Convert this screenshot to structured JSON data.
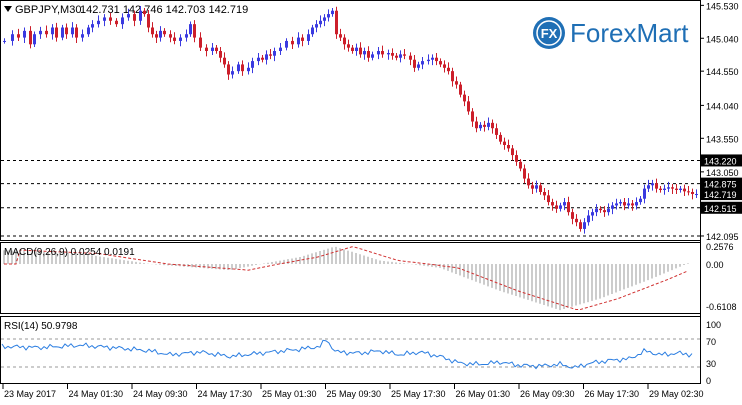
{
  "header": {
    "symbol": "GBPJPY,M30",
    "ohlc": "142.731 142.746 142.703 142.719",
    "menu_icon": "dropdown-triangle-icon"
  },
  "brand": {
    "name": "ForexMart",
    "logo_icon": "fx-logo-icon",
    "logo_letters": "FX",
    "color": "#1f6fb5"
  },
  "price_axis": {
    "labels": [
      "145.530",
      "145.040",
      "144.550",
      "144.040",
      "143.550",
      "143.050",
      "142.095"
    ],
    "markers": [
      {
        "value": "143.220",
        "style": "dark"
      },
      {
        "value": "142.875",
        "style": "dark"
      },
      {
        "value": "142.719",
        "style": "dark"
      },
      {
        "value": "142.515",
        "style": "dark"
      }
    ]
  },
  "macd": {
    "label": "MACD(9,26,9) 0.0254 0.0191",
    "axis": [
      "0.2576",
      "0.00",
      "-0.6108"
    ]
  },
  "rsi": {
    "label": "RSI(14) 50.9798",
    "axis": [
      "100",
      "70",
      "30",
      "0"
    ]
  },
  "time_axis": [
    "23 May 2017",
    "24 May 01:30",
    "24 May 09:30",
    "24 May 17:30",
    "25 May 01:30",
    "25 May 09:30",
    "25 May 17:30",
    "26 May 01:30",
    "26 May 09:30",
    "26 May 17:30",
    "29 May 02:30"
  ],
  "colors": {
    "bull": "#3a3ae0",
    "bear": "#cc1f2b",
    "macd_signal": "#d03030",
    "rsi_line": "#2a7de1",
    "grid_dash": "#000000"
  },
  "chart_data": {
    "type": "candlestick",
    "title": "GBPJPY,M30",
    "ylim": [
      142.05,
      145.58
    ],
    "horizontal_levels": [
      143.22,
      142.875,
      142.515,
      142.095
    ],
    "close_path": [
      [
        0,
        145.0
      ],
      [
        8,
        145.1
      ],
      [
        14,
        145.05
      ],
      [
        20,
        145.15
      ],
      [
        26,
        144.95
      ],
      [
        30,
        145.1
      ],
      [
        36,
        145.15
      ],
      [
        42,
        145.1
      ],
      [
        48,
        145.2
      ],
      [
        52,
        145.05
      ],
      [
        58,
        145.2
      ],
      [
        62,
        145.1
      ],
      [
        68,
        145.2
      ],
      [
        72,
        145.05
      ],
      [
        78,
        145.1
      ],
      [
        84,
        145.2
      ],
      [
        88,
        145.25
      ],
      [
        94,
        145.3
      ],
      [
        100,
        145.35
      ],
      [
        106,
        145.3
      ],
      [
        112,
        145.25
      ],
      [
        118,
        145.35
      ],
      [
        124,
        145.4
      ],
      [
        130,
        145.3
      ],
      [
        136,
        145.45
      ],
      [
        140,
        145.4
      ],
      [
        144,
        145.2
      ],
      [
        148,
        145.1
      ],
      [
        152,
        145.05
      ],
      [
        156,
        145.15
      ],
      [
        160,
        145.1
      ],
      [
        166,
        145.05
      ],
      [
        170,
        145.0
      ],
      [
        176,
        145.05
      ],
      [
        182,
        145.1
      ],
      [
        186,
        145.25
      ],
      [
        190,
        145.05
      ],
      [
        196,
        144.9
      ],
      [
        202,
        144.85
      ],
      [
        208,
        144.9
      ],
      [
        212,
        144.85
      ],
      [
        216,
        144.75
      ],
      [
        220,
        144.65
      ],
      [
        224,
        144.5
      ],
      [
        228,
        144.55
      ],
      [
        234,
        144.65
      ],
      [
        238,
        144.55
      ],
      [
        244,
        144.6
      ],
      [
        248,
        144.7
      ],
      [
        254,
        144.75
      ],
      [
        258,
        144.72
      ],
      [
        262,
        144.8
      ],
      [
        266,
        144.78
      ],
      [
        270,
        144.85
      ],
      [
        276,
        144.9
      ],
      [
        282,
        145.0
      ],
      [
        288,
        144.95
      ],
      [
        294,
        145.05
      ],
      [
        298,
        145.0
      ],
      [
        304,
        145.1
      ],
      [
        308,
        145.2
      ],
      [
        312,
        145.25
      ],
      [
        316,
        145.3
      ],
      [
        320,
        145.35
      ],
      [
        324,
        145.4
      ],
      [
        328,
        145.45
      ],
      [
        332,
        145.1
      ],
      [
        336,
        145.05
      ],
      [
        340,
        144.95
      ],
      [
        344,
        144.9
      ],
      [
        348,
        144.85
      ],
      [
        352,
        144.9
      ],
      [
        356,
        144.8
      ],
      [
        360,
        144.85
      ],
      [
        364,
        144.75
      ],
      [
        368,
        144.8
      ],
      [
        374,
        144.85
      ],
      [
        378,
        144.8
      ],
      [
        384,
        144.82
      ],
      [
        388,
        144.78
      ],
      [
        392,
        144.75
      ],
      [
        396,
        144.8
      ],
      [
        400,
        144.78
      ],
      [
        406,
        144.72
      ],
      [
        410,
        144.6
      ],
      [
        414,
        144.65
      ],
      [
        418,
        144.7
      ],
      [
        424,
        144.72
      ],
      [
        428,
        144.75
      ],
      [
        432,
        144.7
      ],
      [
        436,
        144.65
      ],
      [
        440,
        144.6
      ],
      [
        444,
        144.55
      ],
      [
        448,
        144.4
      ],
      [
        452,
        144.35
      ],
      [
        456,
        144.2
      ],
      [
        460,
        144.1
      ],
      [
        464,
        143.95
      ],
      [
        468,
        143.8
      ],
      [
        472,
        143.7
      ],
      [
        476,
        143.75
      ],
      [
        480,
        143.72
      ],
      [
        484,
        143.78
      ],
      [
        488,
        143.7
      ],
      [
        492,
        143.6
      ],
      [
        496,
        143.5
      ],
      [
        500,
        143.45
      ],
      [
        504,
        143.4
      ],
      [
        508,
        143.3
      ],
      [
        512,
        143.2
      ],
      [
        516,
        143.1
      ],
      [
        520,
        142.95
      ],
      [
        524,
        142.85
      ],
      [
        528,
        142.8
      ],
      [
        532,
        142.85
      ],
      [
        536,
        142.75
      ],
      [
        540,
        142.7
      ],
      [
        544,
        142.6
      ],
      [
        548,
        142.55
      ],
      [
        552,
        142.5
      ],
      [
        556,
        142.55
      ],
      [
        560,
        142.6
      ],
      [
        564,
        142.45
      ],
      [
        568,
        142.35
      ],
      [
        572,
        142.3
      ],
      [
        576,
        142.2
      ],
      [
        580,
        142.3
      ],
      [
        584,
        142.4
      ],
      [
        588,
        142.45
      ],
      [
        592,
        142.5
      ],
      [
        596,
        142.48
      ],
      [
        600,
        142.45
      ],
      [
        604,
        142.5
      ],
      [
        608,
        142.55
      ],
      [
        612,
        142.58
      ],
      [
        616,
        142.6
      ],
      [
        620,
        142.55
      ],
      [
        624,
        142.58
      ],
      [
        628,
        142.55
      ],
      [
        632,
        142.6
      ],
      [
        636,
        142.65
      ],
      [
        640,
        142.8
      ],
      [
        644,
        142.85
      ],
      [
        648,
        142.88
      ],
      [
        652,
        142.8
      ],
      [
        656,
        142.78
      ],
      [
        660,
        142.8
      ],
      [
        664,
        142.82
      ],
      [
        668,
        142.8
      ],
      [
        672,
        142.78
      ],
      [
        676,
        142.8
      ],
      [
        680,
        142.76
      ],
      [
        684,
        142.75
      ],
      [
        688,
        142.72
      ],
      [
        692,
        142.72
      ]
    ]
  }
}
